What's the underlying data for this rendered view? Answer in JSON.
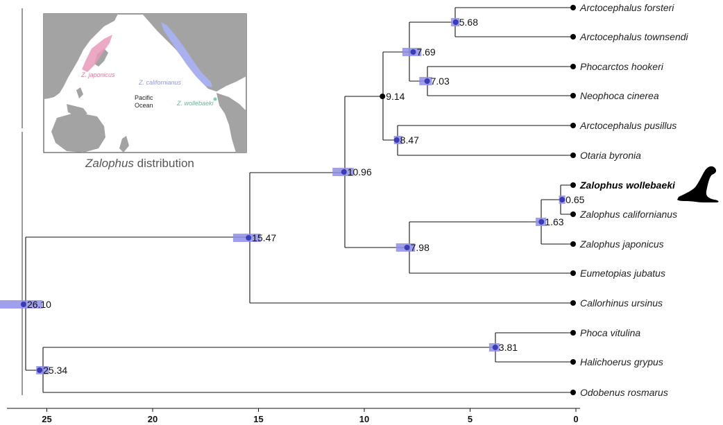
{
  "tree": {
    "nodes": [
      {
        "id": "root",
        "age": 26.1,
        "label": "26.10",
        "hpd": [
          27.3,
          25.2
        ]
      },
      {
        "id": "n15",
        "age": 15.47,
        "label": "15.47",
        "hpd": [
          16.2,
          14.9
        ]
      },
      {
        "id": "n10",
        "age": 10.96,
        "label": "10.96",
        "hpd": [
          11.5,
          10.5
        ]
      },
      {
        "id": "n9",
        "age": 9.14,
        "label": "9.14",
        "hpd": null
      },
      {
        "id": "n7p",
        "age": 7.69,
        "label": "7.69",
        "hpd": [
          8.2,
          7.3
        ]
      },
      {
        "id": "n5",
        "age": 5.68,
        "label": "5.68",
        "hpd": [
          5.9,
          5.5
        ]
      },
      {
        "id": "n7",
        "age": 7.03,
        "label": "7.03",
        "hpd": [
          7.4,
          6.8
        ]
      },
      {
        "id": "n8",
        "age": 8.47,
        "label": "8.47",
        "hpd": [
          8.6,
          8.2
        ]
      },
      {
        "id": "n798",
        "age": 7.98,
        "label": "7.98",
        "hpd": [
          8.5,
          7.6
        ]
      },
      {
        "id": "n163",
        "age": 1.63,
        "label": "1.63",
        "hpd": [
          1.9,
          1.4
        ]
      },
      {
        "id": "n065",
        "age": 0.65,
        "label": "0.65",
        "hpd": [
          0.8,
          0.5
        ]
      },
      {
        "id": "n25",
        "age": 25.34,
        "label": "25.34",
        "hpd": [
          25.5,
          24.9
        ]
      },
      {
        "id": "n381",
        "age": 3.81,
        "label": "3.81",
        "hpd": [
          4.1,
          3.6
        ]
      }
    ],
    "tips": [
      {
        "name": "Arctocephalus forsteri",
        "bold": false
      },
      {
        "name": "Arctocephalus townsendi",
        "bold": false
      },
      {
        "name": "Phocarctos hookeri",
        "bold": false
      },
      {
        "name": "Neophoca cinerea",
        "bold": false
      },
      {
        "name": "Arctocephalus pusillus",
        "bold": false
      },
      {
        "name": "Otaria byronia",
        "bold": false
      },
      {
        "name": "Zalophus wollebaeki",
        "bold": true
      },
      {
        "name": "Zalophus californianus",
        "bold": false
      },
      {
        "name": "Zalophus japonicus",
        "bold": false
      },
      {
        "name": "Eumetopias jubatus",
        "bold": false
      },
      {
        "name": "Callorhinus ursinus",
        "bold": false
      },
      {
        "name": "Phoca vitulina",
        "bold": false
      },
      {
        "name": "Halichoerus grypus",
        "bold": false
      },
      {
        "name": "Odobenus rosmarus",
        "bold": false
      }
    ]
  },
  "axis": {
    "ticks": [
      "25",
      "20",
      "15",
      "10",
      "5",
      "0"
    ],
    "tick_values": [
      25,
      20,
      15,
      10,
      5,
      0
    ],
    "direction": "reversed"
  },
  "map": {
    "caption_italic": "Zalophus",
    "caption_rest": " distribution",
    "labels": {
      "japonicus": "Z. japonicus",
      "californianus": "Z. californianus",
      "wollebaeki": "Z. wollebaeki",
      "ocean_line1": "Pacific",
      "ocean_line2": "Ocean"
    }
  },
  "colors": {
    "hpd_bar": "#8f8fe6",
    "node_dot": "#000000",
    "japonicus_range": "#e79ab8",
    "californianus_range": "#a9b3f5",
    "wollebaeki_range": "#7fcfae",
    "land": "#a3a3a3"
  },
  "icons": {
    "silhouette": "sea-lion-silhouette-icon"
  }
}
